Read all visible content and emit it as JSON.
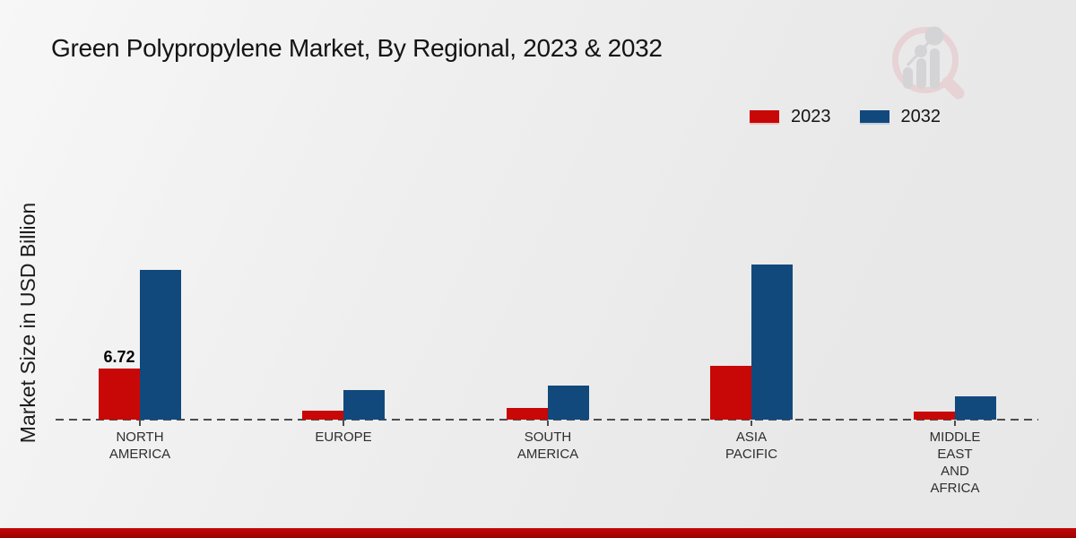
{
  "title": "Green Polypropylene Market, By Regional, 2023 & 2032",
  "y_axis_label": "Market Size in USD Billion",
  "colors": {
    "series_2023": "#c80707",
    "series_2032": "#11497d",
    "footer_bar": "#b20404",
    "baseline": "#4d4d4d",
    "title_text": "#141414",
    "category_text": "#2e2e2e"
  },
  "logo": {
    "name": "magnifier-bar-chart-watermark"
  },
  "chart_data": {
    "type": "bar",
    "title": "Green Polypropylene Market, By Regional, 2023 & 2032",
    "ylabel": "Market Size in USD Billion",
    "xlabel": "",
    "categories": [
      "NORTH AMERICA",
      "EUROPE",
      "SOUTH AMERICA",
      "ASIA PACIFIC",
      "MIDDLE EAST AND AFRICA"
    ],
    "category_label_lines": [
      [
        "NORTH",
        "AMERICA"
      ],
      [
        "EUROPE"
      ],
      [
        "SOUTH",
        "AMERICA"
      ],
      [
        "ASIA",
        "PACIFIC"
      ],
      [
        "MIDDLE",
        "EAST",
        "AND",
        "AFRICA"
      ]
    ],
    "series": [
      {
        "name": "2023",
        "color": "#c80707",
        "values": [
          6.72,
          1.2,
          1.5,
          7.0,
          1.05
        ]
      },
      {
        "name": "2032",
        "color": "#11497d",
        "values": [
          19.6,
          3.9,
          4.5,
          20.3,
          3.0
        ]
      }
    ],
    "data_labels": [
      {
        "series_index": 0,
        "category_index": 0,
        "text": "6.72"
      }
    ],
    "ylim": [
      0,
      22
    ],
    "grid": false,
    "legend_position": "top-right",
    "baseline_style": "dashed",
    "y_axis_ticks_visible": false
  }
}
